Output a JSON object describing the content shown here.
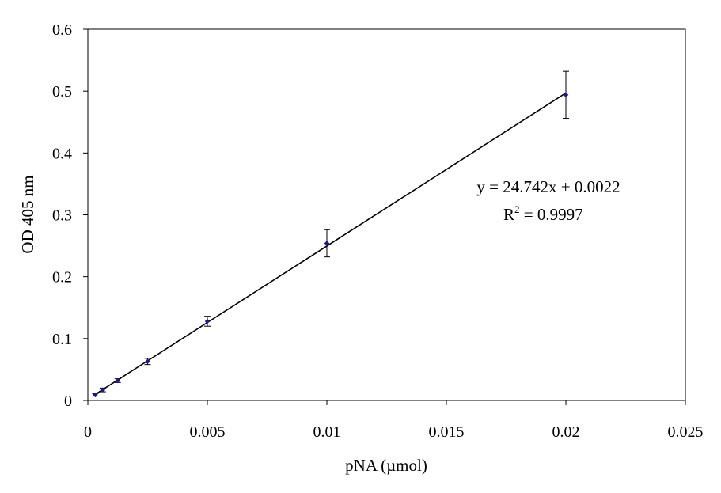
{
  "chart_data": {
    "type": "scatter",
    "title": "",
    "xlabel": "pNA (µmol)",
    "ylabel": "OD 405 nm",
    "xlim": [
      0,
      0.025
    ],
    "ylim": [
      0,
      0.6
    ],
    "x_ticks": [
      0,
      0.005,
      0.01,
      0.015,
      0.02,
      0.025
    ],
    "y_ticks": [
      0,
      0.1,
      0.2,
      0.3,
      0.4,
      0.5,
      0.6
    ],
    "x_tick_labels": [
      "0",
      "0.005",
      "0.01",
      "0.015",
      "0.02",
      "0.025"
    ],
    "y_tick_labels": [
      "0",
      "0.1",
      "0.2",
      "0.3",
      "0.4",
      "0.5",
      "0.6"
    ],
    "grid": false,
    "legend": false,
    "series": [
      {
        "x": [
          0.0003125,
          0.000625,
          0.00125,
          0.0025,
          0.005,
          0.01,
          0.02
        ],
        "y": [
          0.009,
          0.017,
          0.032,
          0.063,
          0.128,
          0.254,
          0.494
        ],
        "error": [
          0.002,
          0.003,
          0.003,
          0.005,
          0.008,
          0.022,
          0.038
        ],
        "marker_color": "#1a1a8c"
      }
    ],
    "trendline": {
      "type": "linear",
      "slope": 24.742,
      "intercept": 0.0022,
      "x_range": [
        0.0003125,
        0.02
      ],
      "color": "#000000"
    },
    "annotations": {
      "equation": "y = 24.742x + 0.0022",
      "r2_prefix": "R",
      "r2_sup": "2",
      "r2_value": " = 0.9997"
    }
  }
}
